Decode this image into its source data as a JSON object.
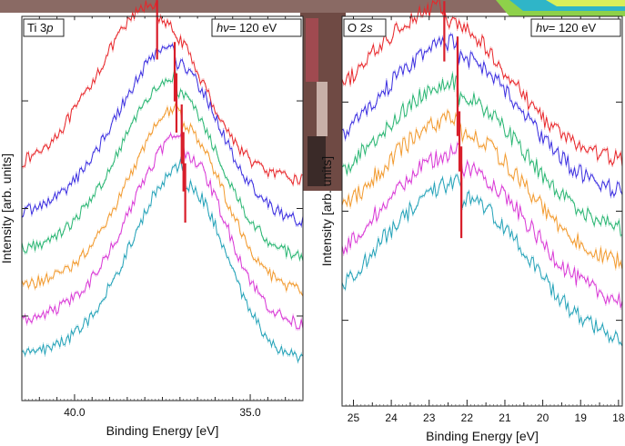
{
  "background": {
    "photo_colors": [
      "#6f4a44",
      "#a04a50",
      "#c8b0a8",
      "#3a2a28"
    ],
    "accent_shape_colors": [
      "#2fb5c8",
      "#8ed14a",
      "#d9ef5a"
    ]
  },
  "chart_data": [
    {
      "type": "line",
      "title": "Ti 3p",
      "title_main": "Ti 3",
      "title_italic": "p",
      "annotation_prefix": "h",
      "annotation_symbol": "ν",
      "annotation_value": "= 120 eV",
      "xlabel": "Binding Energy [eV]",
      "ylabel": "Intensity [arb. units]",
      "xlim": [
        41.5,
        33.5
      ],
      "x_reversed": true,
      "xticks_major": [
        40.0,
        35.0
      ],
      "xtick_labels": [
        "40.0",
        "35.0"
      ],
      "xticks_minor_step": 0.5,
      "ylim": [
        0,
        110
      ],
      "y_ticklabels_shown": false,
      "grid": false,
      "series": [
        {
          "color": "#e8262a",
          "offset": 60,
          "peak_x": 37.65,
          "amp": 44,
          "bg": 2,
          "width": 1.45,
          "noise": 1.6,
          "marker_x": 37.65
        },
        {
          "color": "#3b2ee0",
          "offset": 48,
          "peak_x": 37.15,
          "amp": 44,
          "bg": 2,
          "width": 1.4,
          "noise": 1.6,
          "marker_x": 37.15
        },
        {
          "color": "#2ab673",
          "offset": 38,
          "peak_x": 37.1,
          "amp": 45,
          "bg": 2,
          "width": 1.35,
          "noise": 1.6,
          "marker_x": 37.1
        },
        {
          "color": "#f29a2e",
          "offset": 28,
          "peak_x": 36.95,
          "amp": 46,
          "bg": 2,
          "width": 1.3,
          "noise": 1.6,
          "marker_x": 36.95
        },
        {
          "color": "#d938d6",
          "offset": 18,
          "peak_x": 36.9,
          "amp": 48,
          "bg": 2,
          "width": 1.3,
          "noise": 1.7,
          "marker_x": 36.9
        },
        {
          "color": "#23a2b8",
          "offset": 8,
          "peak_x": 36.85,
          "amp": 49,
          "bg": 2,
          "width": 1.3,
          "noise": 1.7,
          "marker_x": 36.85
        }
      ]
    },
    {
      "type": "line",
      "title": "O 2s",
      "title_main": "O 2",
      "title_italic": "s",
      "annotation_prefix": "h",
      "annotation_symbol": "ν",
      "annotation_value": "= 120 eV",
      "xlabel": "Binding Energy [eV]",
      "ylabel": "Intensity [arb. units]",
      "xlim": [
        25.3,
        17.9
      ],
      "x_reversed": true,
      "xticks_major": [
        25,
        24,
        23,
        22,
        21,
        20,
        19,
        18
      ],
      "xtick_labels": [
        "25",
        "24",
        "23",
        "22",
        "21",
        "20",
        "19",
        "18"
      ],
      "xticks_minor_step": 0.5,
      "ylim": [
        0,
        110
      ],
      "y_ticklabels_shown": false,
      "grid": false,
      "series": [
        {
          "color": "#e8262a",
          "offset": 60,
          "peak_x": 22.6,
          "amp": 38,
          "bg": 8,
          "width": 1.9,
          "noise": 2.2,
          "marker_x": 22.6
        },
        {
          "color": "#3b2ee0",
          "offset": 50,
          "peak_x": 22.25,
          "amp": 38,
          "bg": 8,
          "width": 1.9,
          "noise": 2.2,
          "marker_x": 22.25
        },
        {
          "color": "#2ab673",
          "offset": 40,
          "peak_x": 22.25,
          "amp": 37,
          "bg": 8,
          "width": 1.9,
          "noise": 2.2,
          "marker_x": 22.25
        },
        {
          "color": "#f29a2e",
          "offset": 30,
          "peak_x": 22.2,
          "amp": 37,
          "bg": 8,
          "width": 1.9,
          "noise": 2.3,
          "marker_x": 22.2
        },
        {
          "color": "#d938d6",
          "offset": 19,
          "peak_x": 22.15,
          "amp": 38,
          "bg": 8,
          "width": 1.9,
          "noise": 2.3,
          "marker_x": 22.15
        },
        {
          "color": "#23a2b8",
          "offset": 8,
          "peak_x": 22.15,
          "amp": 40,
          "bg": 8,
          "width": 1.9,
          "noise": 2.3,
          "marker_x": 22.15
        }
      ]
    }
  ]
}
